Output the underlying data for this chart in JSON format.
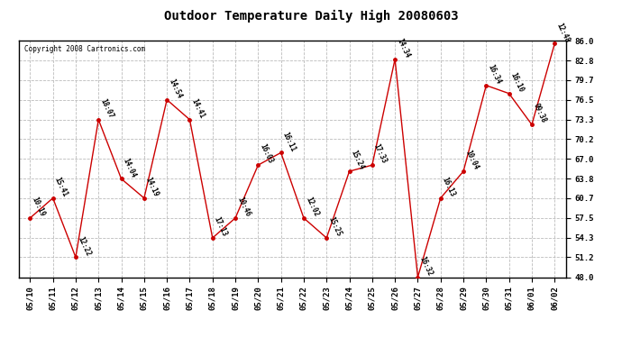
{
  "title": "Outdoor Temperature Daily High 20080603",
  "copyright": "Copyright 2008 Cartronics.com",
  "dates": [
    "05/10",
    "05/11",
    "05/12",
    "05/13",
    "05/14",
    "05/15",
    "05/16",
    "05/17",
    "05/18",
    "05/19",
    "05/20",
    "05/21",
    "05/22",
    "05/23",
    "05/24",
    "05/25",
    "05/26",
    "05/27",
    "05/28",
    "05/29",
    "05/30",
    "05/31",
    "06/01",
    "06/02"
  ],
  "temps": [
    57.5,
    60.7,
    51.2,
    73.3,
    63.8,
    60.7,
    76.5,
    73.3,
    54.3,
    57.5,
    66.0,
    68.0,
    57.5,
    54.3,
    65.0,
    66.0,
    83.0,
    48.0,
    60.7,
    65.0,
    78.8,
    77.5,
    72.5,
    85.5
  ],
  "labels": [
    "10:19",
    "15:41",
    "12:22",
    "18:07",
    "14:04",
    "14:19",
    "14:54",
    "14:41",
    "17:13",
    "10:46",
    "16:03",
    "16:11",
    "12:02",
    "15:25",
    "15:24",
    "17:33",
    "14:34",
    "16:32",
    "16:13",
    "10:04",
    "16:34",
    "16:10",
    "09:38",
    "12:48"
  ],
  "ylim": [
    48.0,
    86.0
  ],
  "yticks": [
    48.0,
    51.2,
    54.3,
    57.5,
    60.7,
    63.8,
    67.0,
    70.2,
    73.3,
    76.5,
    79.7,
    82.8,
    86.0
  ],
  "line_color": "#cc0000",
  "marker_color": "#cc0000",
  "bg_color": "#ffffff",
  "grid_color": "#bbbbbb",
  "title_fontsize": 10,
  "label_fontsize": 5.5,
  "axis_fontsize": 6.5,
  "copyright_fontsize": 5.5
}
